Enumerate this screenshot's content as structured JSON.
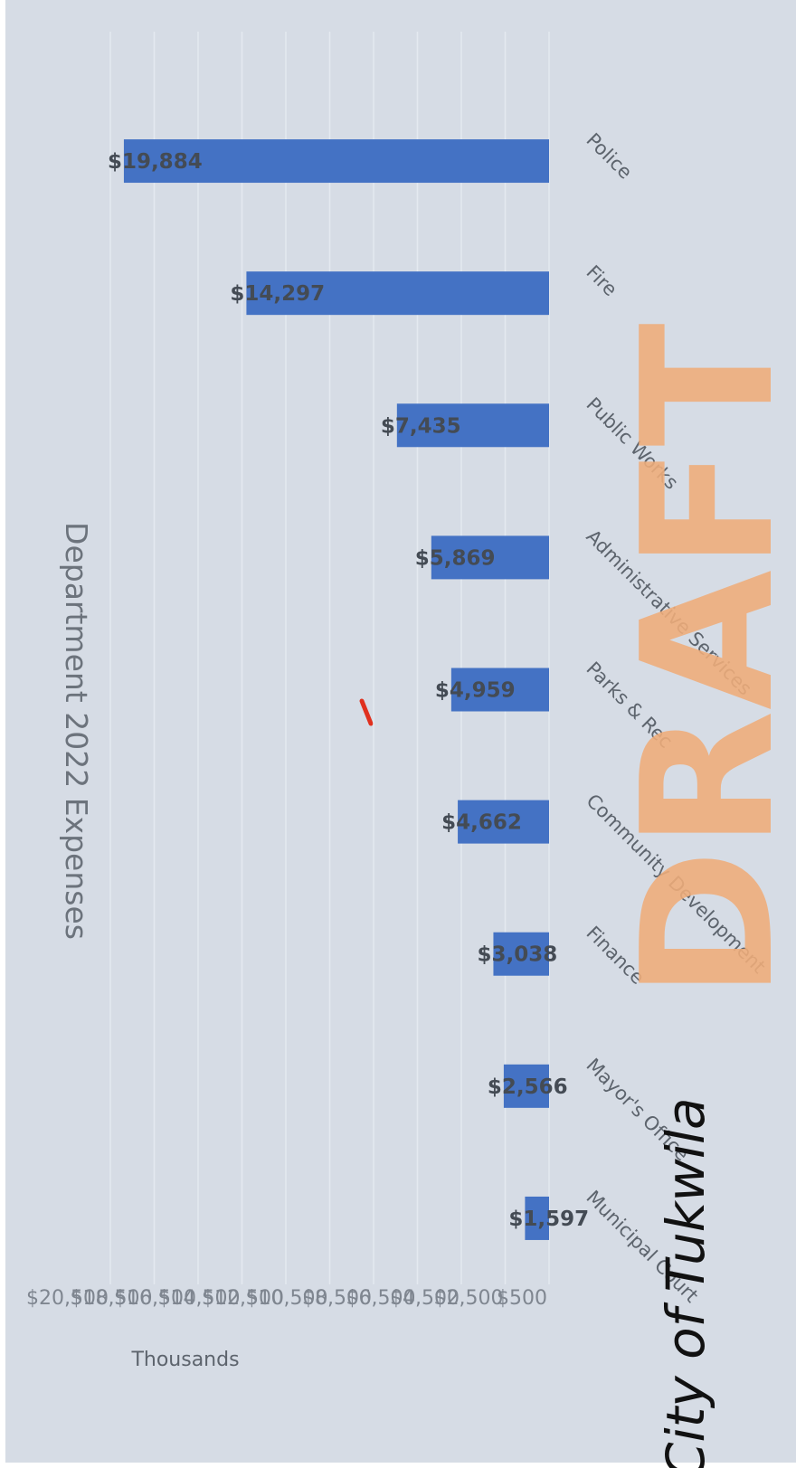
{
  "colors": {
    "page_background": "#ffffff",
    "chart_background": "#d6dce5",
    "bar": "#4472c4",
    "gridline": "#e4e9f0",
    "watermark": "#f0ad7a",
    "accent_red": "#e0301e"
  },
  "branding": {
    "org_name": "City of Tukwila",
    "watermark": "DRAFT"
  },
  "chart_data": {
    "type": "bar",
    "orientation": "rotated 90 degrees clockwise",
    "title": "Department 2022 Expenses",
    "ylabel": "Thousands",
    "xlabel": "",
    "categories": [
      "Police",
      "Fire",
      "Public Works",
      "Administrative Services",
      "Parks & Rec",
      "Community Development",
      "Finance",
      "Mayor's Office",
      "Municipal Court"
    ],
    "values": [
      19884,
      14297,
      7435,
      5869,
      4959,
      4662,
      3038,
      2566,
      1597
    ],
    "data_labels": [
      "$19,884",
      "$14,297",
      "$7,435",
      "$5,869",
      "$4,959",
      "$4,662",
      "$3,038",
      "$2,566",
      "$1,597"
    ],
    "ylim": [
      500,
      20500
    ],
    "ytick_values": [
      500,
      2500,
      4500,
      6500,
      8500,
      10500,
      12500,
      14500,
      16500,
      18500,
      20500
    ],
    "ytick_labels": [
      "$500",
      "$2,500",
      "$4,500",
      "$6,500",
      "$8,500",
      "$10,500",
      "$12,500",
      "$14,500",
      "$16,500",
      "$18,500",
      "$20,500"
    ],
    "grid": true,
    "legend": "none"
  }
}
